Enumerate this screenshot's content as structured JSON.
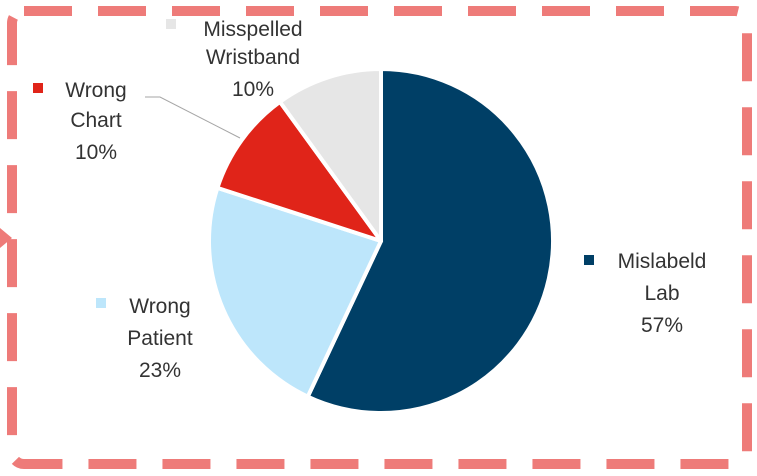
{
  "chart_data": {
    "type": "pie",
    "title": "",
    "slices": [
      {
        "key": "mislabeld-lab",
        "label_lines": [
          "Mislabeld",
          "Lab"
        ],
        "percent_label": "57%",
        "value": 57,
        "color": "#003F66"
      },
      {
        "key": "wrong-patient",
        "label_lines": [
          "Wrong",
          "Patient"
        ],
        "percent_label": "23%",
        "value": 23,
        "color": "#BDE6FB"
      },
      {
        "key": "wrong-chart",
        "label_lines": [
          "Wrong",
          "Chart"
        ],
        "percent_label": "10%",
        "value": 10,
        "color": "#E02419"
      },
      {
        "key": "misspelled-wristband",
        "label_lines": [
          "Misspelled",
          "Wristband"
        ],
        "percent_label": "10%",
        "value": 10,
        "color": "#E6E6E6"
      }
    ],
    "legend": "inline-labels"
  },
  "frame": {
    "border_color": "#EE7B79",
    "arrow_color": "#EE7B79"
  }
}
